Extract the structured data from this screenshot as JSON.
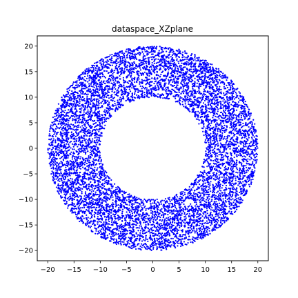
{
  "chart_data": {
    "type": "scatter",
    "title": "dataspace_XZplane",
    "xlabel": "",
    "ylabel": "",
    "xlim": [
      -22,
      22
    ],
    "ylim": [
      -22,
      22
    ],
    "x_ticks": [
      -20,
      -15,
      -10,
      -5,
      0,
      5,
      10,
      15,
      20
    ],
    "y_ticks": [
      -20,
      -15,
      -10,
      -5,
      0,
      5,
      10,
      15,
      20
    ],
    "grid": false,
    "legend": "none",
    "series": [
      {
        "marker_color": "#0000ff",
        "distribution": "annulus",
        "center": [
          0,
          0
        ],
        "inner_radius": 10,
        "outer_radius": 20,
        "point_count": 9000,
        "points_x": [
          0,
          5,
          -5,
          10,
          -10,
          15,
          -15,
          18,
          -18,
          12,
          -12
        ],
        "points_y": [
          18,
          17,
          -17,
          15,
          -15,
          10,
          -10,
          2,
          -2,
          -12,
          12
        ]
      }
    ]
  }
}
